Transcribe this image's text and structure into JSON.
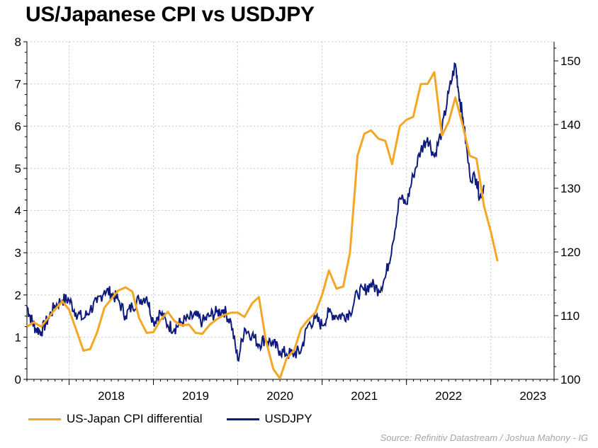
{
  "chart_data": {
    "type": "line",
    "title": "US/Japanese CPI vs USDJPY",
    "x_ticks": [
      "2018",
      "2019",
      "2020",
      "2021",
      "2022",
      "2023"
    ],
    "x_range": [
      2017.5,
      2023.75
    ],
    "left_axis": {
      "range": [
        0,
        8
      ],
      "ticks": [
        "0",
        "1",
        "2",
        "3",
        "4",
        "5",
        "6",
        "7",
        "8"
      ]
    },
    "right_axis": {
      "range": [
        100,
        153
      ],
      "ticks": [
        "100",
        "110",
        "120",
        "130",
        "140",
        "150"
      ]
    },
    "colors": {
      "cpi": "#F5A623",
      "usdjpy": "#0E1A7E"
    },
    "series": [
      {
        "name": "US-Japan CPI differential",
        "axis": "left",
        "points": [
          [
            2017.5,
            1.25
          ],
          [
            2017.58,
            1.35
          ],
          [
            2017.67,
            1.25
          ],
          [
            2017.75,
            1.45
          ],
          [
            2017.83,
            1.65
          ],
          [
            2017.92,
            1.85
          ],
          [
            2018.0,
            1.65
          ],
          [
            2018.08,
            1.2
          ],
          [
            2018.17,
            0.68
          ],
          [
            2018.25,
            0.72
          ],
          [
            2018.33,
            1.1
          ],
          [
            2018.42,
            1.7
          ],
          [
            2018.5,
            1.9
          ],
          [
            2018.58,
            2.1
          ],
          [
            2018.67,
            2.18
          ],
          [
            2018.75,
            2.08
          ],
          [
            2018.83,
            1.45
          ],
          [
            2018.92,
            1.1
          ],
          [
            2019.0,
            1.12
          ],
          [
            2019.08,
            1.4
          ],
          [
            2019.17,
            1.6
          ],
          [
            2019.25,
            1.38
          ],
          [
            2019.33,
            1.28
          ],
          [
            2019.42,
            1.3
          ],
          [
            2019.5,
            1.1
          ],
          [
            2019.58,
            1.08
          ],
          [
            2019.67,
            1.3
          ],
          [
            2019.75,
            1.42
          ],
          [
            2019.83,
            1.52
          ],
          [
            2019.92,
            1.58
          ],
          [
            2020.0,
            1.58
          ],
          [
            2020.08,
            1.48
          ],
          [
            2020.17,
            1.8
          ],
          [
            2020.25,
            1.95
          ],
          [
            2020.33,
            0.95
          ],
          [
            2020.42,
            0.25
          ],
          [
            2020.5,
            0.02
          ],
          [
            2020.58,
            0.5
          ],
          [
            2020.67,
            0.7
          ],
          [
            2020.75,
            1.2
          ],
          [
            2020.83,
            1.4
          ],
          [
            2020.92,
            1.58
          ],
          [
            2021.0,
            2.0
          ],
          [
            2021.08,
            2.58
          ],
          [
            2021.17,
            2.15
          ],
          [
            2021.25,
            2.2
          ],
          [
            2021.33,
            3.0
          ],
          [
            2021.42,
            5.3
          ],
          [
            2021.5,
            5.82
          ],
          [
            2021.58,
            5.9
          ],
          [
            2021.67,
            5.7
          ],
          [
            2021.75,
            5.65
          ],
          [
            2021.83,
            5.1
          ],
          [
            2021.92,
            6.0
          ],
          [
            2022.0,
            6.15
          ],
          [
            2022.08,
            6.22
          ],
          [
            2022.17,
            7.0
          ],
          [
            2022.25,
            7.0
          ],
          [
            2022.33,
            7.28
          ],
          [
            2022.42,
            5.78
          ],
          [
            2022.5,
            6.1
          ],
          [
            2022.58,
            6.68
          ],
          [
            2022.67,
            6.0
          ],
          [
            2022.75,
            5.3
          ],
          [
            2022.83,
            5.23
          ],
          [
            2022.92,
            4.1
          ],
          [
            2023.0,
            3.5
          ],
          [
            2023.08,
            2.8
          ]
        ]
      },
      {
        "name": "USDJPY",
        "axis": "right",
        "points": [
          [
            2017.5,
            111.5
          ],
          [
            2017.55,
            109.5
          ],
          [
            2017.6,
            108.0
          ],
          [
            2017.67,
            107.5
          ],
          [
            2017.75,
            109.5
          ],
          [
            2017.83,
            111.5
          ],
          [
            2017.92,
            112.5
          ],
          [
            2018.0,
            112.5
          ],
          [
            2018.08,
            110.5
          ],
          [
            2018.17,
            109.5
          ],
          [
            2018.25,
            111.0
          ],
          [
            2018.33,
            112.0
          ],
          [
            2018.42,
            114.0
          ],
          [
            2018.5,
            113.5
          ],
          [
            2018.58,
            112.5
          ],
          [
            2018.67,
            110.0
          ],
          [
            2018.75,
            111.5
          ],
          [
            2018.83,
            112.5
          ],
          [
            2018.92,
            113.0
          ],
          [
            2019.0,
            109.0
          ],
          [
            2019.08,
            110.5
          ],
          [
            2019.17,
            108.5
          ],
          [
            2019.25,
            108.0
          ],
          [
            2019.33,
            109.0
          ],
          [
            2019.42,
            109.5
          ],
          [
            2019.5,
            110.0
          ],
          [
            2019.58,
            109.0
          ],
          [
            2019.67,
            110.0
          ],
          [
            2019.75,
            110.5
          ],
          [
            2019.83,
            111.0
          ],
          [
            2019.92,
            109.0
          ],
          [
            2020.0,
            103.0
          ],
          [
            2020.08,
            108.0
          ],
          [
            2020.17,
            107.0
          ],
          [
            2020.25,
            105.5
          ],
          [
            2020.33,
            106.5
          ],
          [
            2020.42,
            105.5
          ],
          [
            2020.5,
            104.5
          ],
          [
            2020.58,
            104.0
          ],
          [
            2020.67,
            104.0
          ],
          [
            2020.75,
            104.5
          ],
          [
            2020.83,
            108.5
          ],
          [
            2020.92,
            109.5
          ],
          [
            2021.0,
            108.5
          ],
          [
            2021.08,
            110.5
          ],
          [
            2021.17,
            110.0
          ],
          [
            2021.25,
            110.0
          ],
          [
            2021.33,
            110.5
          ],
          [
            2021.42,
            113.5
          ],
          [
            2021.5,
            114.0
          ],
          [
            2021.58,
            115.0
          ],
          [
            2021.67,
            114.0
          ],
          [
            2021.75,
            116.0
          ],
          [
            2021.83,
            121.0
          ],
          [
            2021.92,
            128.5
          ],
          [
            2022.0,
            127.5
          ],
          [
            2022.08,
            132.0
          ],
          [
            2022.17,
            136.0
          ],
          [
            2022.25,
            138.0
          ],
          [
            2022.33,
            135.0
          ],
          [
            2022.42,
            139.0
          ],
          [
            2022.5,
            145.0
          ],
          [
            2022.58,
            149.5
          ],
          [
            2022.62,
            145.0
          ],
          [
            2022.67,
            141.0
          ],
          [
            2022.75,
            132.0
          ],
          [
            2022.83,
            131.5
          ],
          [
            2022.87,
            128.5
          ],
          [
            2022.92,
            130.5
          ]
        ]
      }
    ],
    "legend": [
      "US-Japan CPI differential",
      "USDJPY"
    ],
    "legend_placement": "bottom-left",
    "source": "Source: Refinitiv Datastream / Joshua Mahony - IG"
  }
}
